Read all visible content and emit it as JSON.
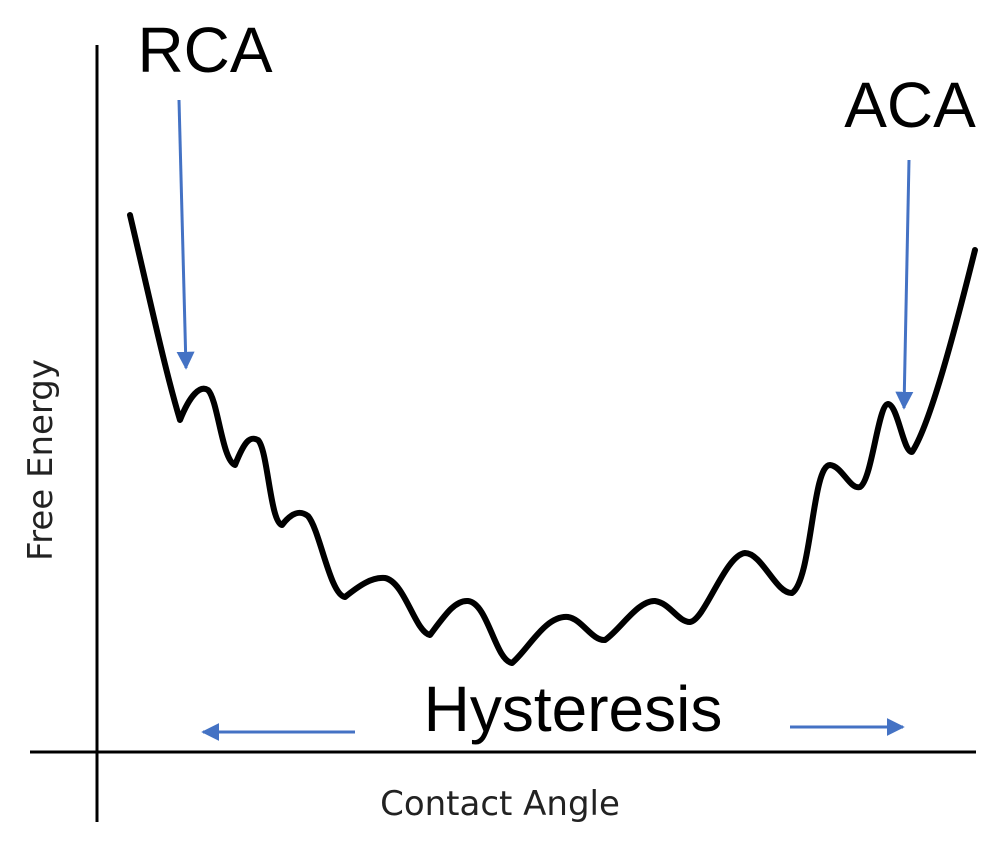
{
  "diagram": {
    "labels": {
      "rca": "RCA",
      "aca": "ACA",
      "hysteresis": "Hysteresis",
      "x_axis": "Contact Angle",
      "y_axis": "Free Energy"
    },
    "colors": {
      "curve": "#000000",
      "axes": "#000000",
      "arrows": "#4472C4"
    }
  }
}
